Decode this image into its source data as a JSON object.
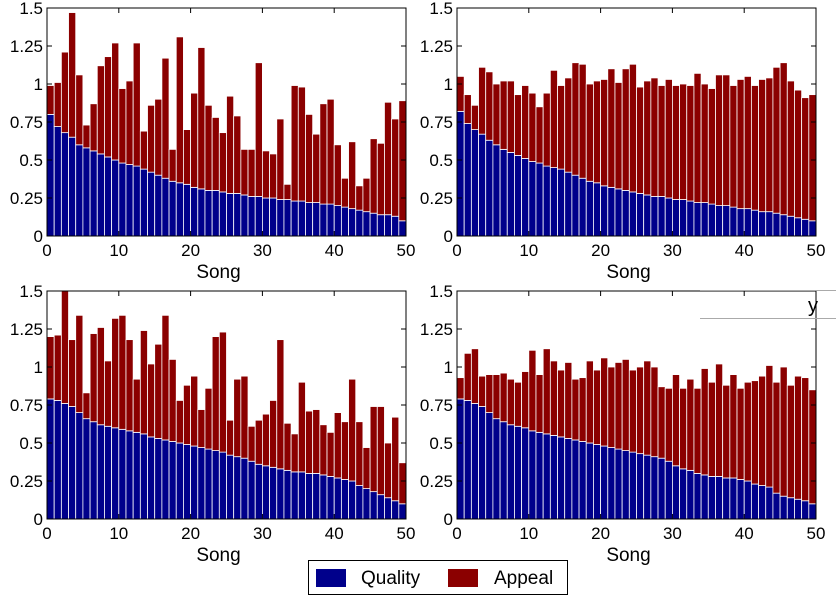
{
  "colors": {
    "quality": "#00008b",
    "appeal": "#8b0000",
    "bar_edge": "#ffffff",
    "axis": "#000000"
  },
  "legend": {
    "placement": "bottom-center",
    "items": [
      {
        "label": "Quality",
        "color": "#00008b"
      },
      {
        "label": "Appeal",
        "color": "#8b0000"
      }
    ]
  },
  "stray_text": "y",
  "chart_data": [
    {
      "type": "bar",
      "stacked": true,
      "xlabel": "Song",
      "ylabel": "",
      "xlim": [
        0,
        50
      ],
      "ylim": [
        0,
        1.5
      ],
      "xticks": [
        "0",
        "10",
        "20",
        "30",
        "40",
        "50"
      ],
      "yticks": [
        "0",
        "0.25",
        "0.5",
        "0.75",
        "1",
        "1.25",
        "1.5"
      ],
      "grid": false,
      "x": [
        1,
        2,
        3,
        4,
        5,
        6,
        7,
        8,
        9,
        10,
        11,
        12,
        13,
        14,
        15,
        16,
        17,
        18,
        19,
        20,
        21,
        22,
        23,
        24,
        25,
        26,
        27,
        28,
        29,
        30,
        31,
        32,
        33,
        34,
        35,
        36,
        37,
        38,
        39,
        40,
        41,
        42,
        43,
        44,
        45,
        46,
        47,
        48,
        49,
        50
      ],
      "series": [
        {
          "name": "Quality",
          "values": [
            0.8,
            0.72,
            0.68,
            0.65,
            0.6,
            0.58,
            0.56,
            0.54,
            0.52,
            0.5,
            0.48,
            0.47,
            0.46,
            0.44,
            0.42,
            0.4,
            0.38,
            0.36,
            0.35,
            0.34,
            0.32,
            0.31,
            0.3,
            0.3,
            0.29,
            0.28,
            0.28,
            0.27,
            0.26,
            0.26,
            0.25,
            0.25,
            0.24,
            0.24,
            0.23,
            0.23,
            0.22,
            0.22,
            0.21,
            0.21,
            0.2,
            0.19,
            0.18,
            0.17,
            0.16,
            0.15,
            0.14,
            0.14,
            0.13,
            0.1
          ]
        },
        {
          "name": "Appeal",
          "values": [
            0.19,
            0.29,
            0.53,
            0.82,
            0.46,
            0.15,
            0.31,
            0.58,
            0.66,
            0.77,
            0.49,
            0.55,
            0.81,
            0.25,
            0.44,
            0.5,
            0.79,
            0.21,
            0.96,
            0.36,
            0.62,
            0.93,
            0.56,
            0.48,
            0.39,
            0.64,
            0.51,
            0.3,
            0.31,
            0.88,
            0.31,
            0.29,
            0.53,
            0.1,
            0.76,
            0.75,
            0.58,
            0.45,
            0.66,
            0.69,
            0.4,
            0.19,
            0.44,
            0.16,
            0.22,
            0.49,
            0.47,
            0.74,
            0.64,
            0.79
          ]
        }
      ]
    },
    {
      "type": "bar",
      "stacked": true,
      "xlabel": "Song",
      "ylabel": "",
      "xlim": [
        0,
        50
      ],
      "ylim": [
        0,
        1.5
      ],
      "xticks": [
        "0",
        "10",
        "20",
        "30",
        "40",
        "50"
      ],
      "yticks": [
        "0",
        "0.25",
        "0.5",
        "0.75",
        "1",
        "1.25",
        "1.5"
      ],
      "grid": false,
      "x": [
        1,
        2,
        3,
        4,
        5,
        6,
        7,
        8,
        9,
        10,
        11,
        12,
        13,
        14,
        15,
        16,
        17,
        18,
        19,
        20,
        21,
        22,
        23,
        24,
        25,
        26,
        27,
        28,
        29,
        30,
        31,
        32,
        33,
        34,
        35,
        36,
        37,
        38,
        39,
        40,
        41,
        42,
        43,
        44,
        45,
        46,
        47,
        48,
        49,
        50
      ],
      "series": [
        {
          "name": "Quality",
          "values": [
            0.82,
            0.74,
            0.7,
            0.67,
            0.63,
            0.6,
            0.57,
            0.55,
            0.53,
            0.51,
            0.49,
            0.48,
            0.46,
            0.45,
            0.44,
            0.42,
            0.4,
            0.38,
            0.36,
            0.35,
            0.33,
            0.32,
            0.31,
            0.3,
            0.29,
            0.28,
            0.27,
            0.26,
            0.26,
            0.25,
            0.24,
            0.24,
            0.23,
            0.22,
            0.22,
            0.21,
            0.2,
            0.2,
            0.19,
            0.18,
            0.18,
            0.17,
            0.16,
            0.16,
            0.15,
            0.14,
            0.13,
            0.12,
            0.11,
            0.1
          ]
        },
        {
          "name": "Appeal",
          "values": [
            0.23,
            0.19,
            0.16,
            0.44,
            0.45,
            0.4,
            0.45,
            0.47,
            0.4,
            0.48,
            0.45,
            0.37,
            0.48,
            0.64,
            0.55,
            0.62,
            0.74,
            0.75,
            0.64,
            0.67,
            0.7,
            0.78,
            0.7,
            0.8,
            0.84,
            0.7,
            0.75,
            0.78,
            0.73,
            0.78,
            0.75,
            0.76,
            0.76,
            0.85,
            0.78,
            0.76,
            0.86,
            0.86,
            0.8,
            0.85,
            0.87,
            0.82,
            0.87,
            0.88,
            0.96,
            1.0,
            0.89,
            0.84,
            0.8,
            0.83
          ]
        }
      ]
    },
    {
      "type": "bar",
      "stacked": true,
      "xlabel": "Song",
      "ylabel": "",
      "xlim": [
        0,
        50
      ],
      "ylim": [
        0,
        1.5
      ],
      "xticks": [
        "0",
        "10",
        "20",
        "30",
        "40",
        "50"
      ],
      "yticks": [
        "0",
        "0.25",
        "0.5",
        "0.75",
        "1",
        "1.25",
        "1.5"
      ],
      "grid": false,
      "x": [
        1,
        2,
        3,
        4,
        5,
        6,
        7,
        8,
        9,
        10,
        11,
        12,
        13,
        14,
        15,
        16,
        17,
        18,
        19,
        20,
        21,
        22,
        23,
        24,
        25,
        26,
        27,
        28,
        29,
        30,
        31,
        32,
        33,
        34,
        35,
        36,
        37,
        38,
        39,
        40,
        41,
        42,
        43,
        44,
        45,
        46,
        47,
        48,
        49,
        50
      ],
      "series": [
        {
          "name": "Quality",
          "values": [
            0.79,
            0.78,
            0.76,
            0.74,
            0.7,
            0.66,
            0.64,
            0.62,
            0.61,
            0.6,
            0.59,
            0.58,
            0.57,
            0.56,
            0.54,
            0.53,
            0.52,
            0.51,
            0.5,
            0.49,
            0.48,
            0.47,
            0.46,
            0.45,
            0.44,
            0.42,
            0.41,
            0.4,
            0.38,
            0.36,
            0.35,
            0.34,
            0.33,
            0.32,
            0.31,
            0.31,
            0.3,
            0.3,
            0.29,
            0.28,
            0.27,
            0.26,
            0.25,
            0.22,
            0.2,
            0.18,
            0.16,
            0.14,
            0.12,
            0.1
          ]
        },
        {
          "name": "Appeal",
          "values": [
            0.41,
            0.43,
            0.8,
            0.44,
            0.64,
            0.17,
            0.58,
            0.64,
            0.43,
            0.72,
            0.75,
            0.6,
            0.35,
            0.68,
            0.48,
            0.62,
            0.82,
            0.54,
            0.28,
            0.39,
            0.46,
            0.25,
            0.4,
            0.75,
            0.79,
            0.23,
            0.51,
            0.54,
            0.23,
            0.29,
            0.34,
            0.44,
            0.85,
            0.31,
            0.25,
            0.59,
            0.41,
            0.42,
            0.33,
            0.29,
            0.43,
            0.38,
            0.67,
            0.42,
            0.27,
            0.56,
            0.58,
            0.36,
            0.55,
            0.27
          ]
        }
      ]
    },
    {
      "type": "bar",
      "stacked": true,
      "xlabel": "Song",
      "ylabel": "",
      "xlim": [
        0,
        50
      ],
      "ylim": [
        0,
        1.5
      ],
      "xticks": [
        "0",
        "10",
        "20",
        "30",
        "40",
        "50"
      ],
      "yticks": [
        "0",
        "0.25",
        "0.5",
        "0.75",
        "1",
        "1.25",
        "1.5"
      ],
      "grid": false,
      "x": [
        1,
        2,
        3,
        4,
        5,
        6,
        7,
        8,
        9,
        10,
        11,
        12,
        13,
        14,
        15,
        16,
        17,
        18,
        19,
        20,
        21,
        22,
        23,
        24,
        25,
        26,
        27,
        28,
        29,
        30,
        31,
        32,
        33,
        34,
        35,
        36,
        37,
        38,
        39,
        40,
        41,
        42,
        43,
        44,
        45,
        46,
        47,
        48,
        49,
        50
      ],
      "series": [
        {
          "name": "Quality",
          "values": [
            0.79,
            0.78,
            0.76,
            0.74,
            0.7,
            0.66,
            0.64,
            0.62,
            0.61,
            0.6,
            0.58,
            0.57,
            0.56,
            0.55,
            0.54,
            0.53,
            0.52,
            0.51,
            0.5,
            0.49,
            0.48,
            0.47,
            0.46,
            0.45,
            0.44,
            0.43,
            0.42,
            0.41,
            0.4,
            0.38,
            0.35,
            0.33,
            0.32,
            0.3,
            0.29,
            0.28,
            0.28,
            0.27,
            0.27,
            0.26,
            0.25,
            0.23,
            0.22,
            0.21,
            0.17,
            0.15,
            0.14,
            0.13,
            0.12,
            0.1
          ]
        },
        {
          "name": "Appeal",
          "values": [
            0.14,
            0.31,
            0.36,
            0.2,
            0.25,
            0.29,
            0.32,
            0.3,
            0.29,
            0.37,
            0.53,
            0.38,
            0.56,
            0.49,
            0.44,
            0.5,
            0.4,
            0.42,
            0.54,
            0.49,
            0.58,
            0.53,
            0.57,
            0.6,
            0.54,
            0.57,
            0.62,
            0.59,
            0.47,
            0.48,
            0.6,
            0.53,
            0.6,
            0.56,
            0.7,
            0.62,
            0.74,
            0.61,
            0.68,
            0.6,
            0.65,
            0.68,
            0.72,
            0.8,
            0.73,
            0.85,
            0.74,
            0.81,
            0.81,
            0.75
          ]
        }
      ]
    }
  ]
}
